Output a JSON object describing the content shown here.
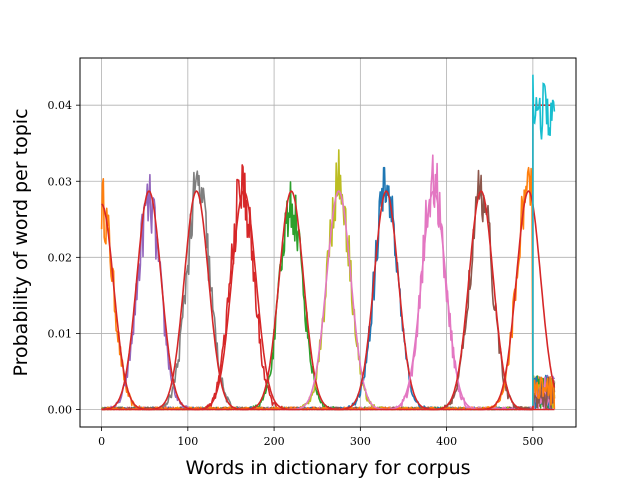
{
  "chart_data": {
    "type": "line",
    "title": "",
    "xlabel": "Words in dictionary for corpus",
    "ylabel": "Probability of word per topic",
    "xlim": [
      -25,
      550
    ],
    "ylim": [
      -0.0023,
      0.0462
    ],
    "xticks": [
      0,
      100,
      200,
      300,
      400,
      500
    ],
    "xtick_labels": [
      "0",
      "100",
      "200",
      "300",
      "400",
      "500"
    ],
    "yticks": [
      0.0,
      0.01,
      0.02,
      0.03,
      0.04
    ],
    "ytick_labels": [
      "0.00",
      "0.01",
      "0.02",
      "0.03",
      "0.04"
    ],
    "grid": true,
    "legend": "none",
    "description_of_series": "Ten noisy empirical topic-word distributions (Gaussian bumps) each overlaid with a smooth theoretical curve; plus a flat 0.04 reference line (red) and a noisy high cluster (cyan) over words 500-525.",
    "smooth_curves": [
      {
        "color": "#d62728",
        "peak_x": 0,
        "peak_y": 0.027,
        "sigma": 14
      },
      {
        "color": "#d62728",
        "peak_x": 55,
        "peak_y": 0.0287,
        "sigma": 14
      },
      {
        "color": "#d62728",
        "peak_x": 110,
        "peak_y": 0.0287,
        "sigma": 14
      },
      {
        "color": "#d62728",
        "peak_x": 165,
        "peak_y": 0.0287,
        "sigma": 14
      },
      {
        "color": "#d62728",
        "peak_x": 220,
        "peak_y": 0.0287,
        "sigma": 14
      },
      {
        "color": "#e377c2",
        "peak_x": 275,
        "peak_y": 0.0287,
        "sigma": 14
      },
      {
        "color": "#d62728",
        "peak_x": 330,
        "peak_y": 0.0287,
        "sigma": 14
      },
      {
        "color": "#e377c2",
        "peak_x": 385,
        "peak_y": 0.0287,
        "sigma": 14
      },
      {
        "color": "#d62728",
        "peak_x": 440,
        "peak_y": 0.0287,
        "sigma": 14
      },
      {
        "color": "#d62728",
        "peak_x": 495,
        "peak_y": 0.0287,
        "sigma": 14
      }
    ],
    "noisy_series": [
      {
        "color": "#ff7f0e",
        "center": 0,
        "peak": 0.027
      },
      {
        "color": "#9467bd",
        "center": 55,
        "peak": 0.027
      },
      {
        "color": "#7f7f7f",
        "center": 112,
        "peak": 0.029
      },
      {
        "color": "#d62728",
        "center": 163,
        "peak": 0.029
      },
      {
        "color": "#2ca02c",
        "center": 220,
        "peak": 0.027
      },
      {
        "color": "#bcbd22",
        "center": 275,
        "peak": 0.03
      },
      {
        "color": "#1f77b4",
        "center": 330,
        "peak": 0.029
      },
      {
        "color": "#e377c2",
        "center": 385,
        "peak": 0.03
      },
      {
        "color": "#8c564b",
        "center": 440,
        "peak": 0.028
      },
      {
        "color": "#ff7f0e",
        "center": 495,
        "peak": 0.03
      }
    ],
    "flat_line": {
      "color": "#d62728",
      "x": [
        500,
        525
      ],
      "y": 0.04
    },
    "high_cluster": {
      "color": "#17becf",
      "x_range": [
        500,
        525
      ],
      "mean": 0.039,
      "max": 0.044,
      "min": 0.0355
    }
  }
}
